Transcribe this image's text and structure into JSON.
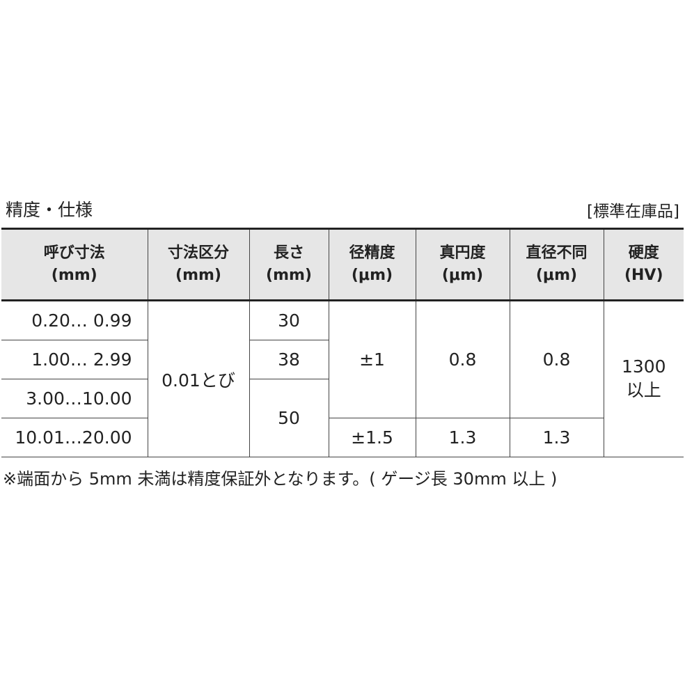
{
  "title": "精度・仕様",
  "stock_label": "[標準在庫品]",
  "table": {
    "headers": [
      {
        "line1": "呼び寸法",
        "line2": "(mm)"
      },
      {
        "line1": "寸法区分",
        "line2": "(mm)"
      },
      {
        "line1": "長さ",
        "line2": "(mm)"
      },
      {
        "line1": "径精度",
        "line2": "(μm)"
      },
      {
        "line1": "真円度",
        "line2": "(μm)"
      },
      {
        "line1": "直径不同",
        "line2": "(μm)"
      },
      {
        "line1": "硬度",
        "line2": "(HV)"
      }
    ],
    "nominal": [
      "0.20… 0.99",
      "1.00… 2.99",
      "3.00…10.00",
      "10.01…20.00"
    ],
    "increment": "0.01とび",
    "length": [
      "30",
      "38",
      "50"
    ],
    "diameter_accuracy": [
      "±1",
      "±1.5"
    ],
    "roundness": [
      "0.8",
      "1.3"
    ],
    "diameter_variation": [
      "0.8",
      "1.3"
    ],
    "hardness": {
      "line1": "1300",
      "line2": "以上"
    }
  },
  "footnote": "※端面から 5mm 未満は精度保証外となります。( ゲージ長 30mm 以上 )"
}
